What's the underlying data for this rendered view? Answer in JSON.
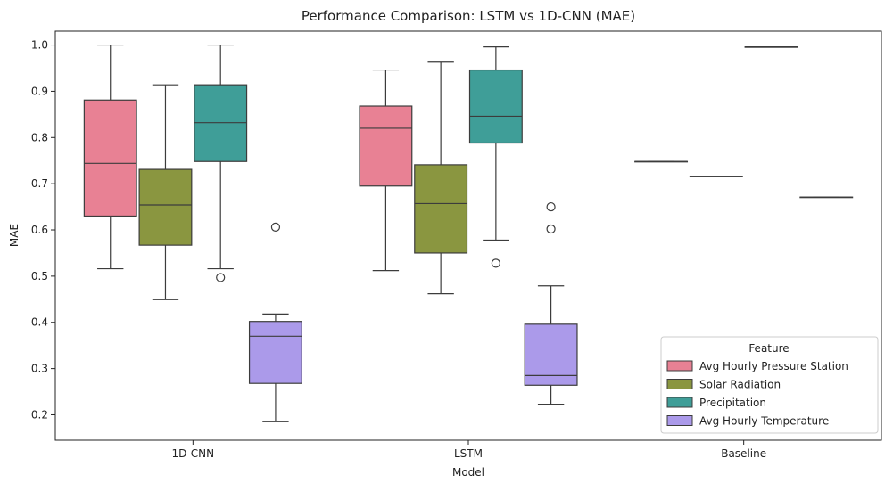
{
  "chart_data": {
    "type": "box",
    "title": "Performance Comparison: LSTM vs 1D-CNN (MAE)",
    "xlabel": "Model",
    "ylabel": "MAE",
    "ylim": [
      0.145,
      1.03
    ],
    "yticks": [
      0.2,
      0.3,
      0.4,
      0.5,
      0.6,
      0.7,
      0.8,
      0.9,
      1.0
    ],
    "ytick_labels": [
      "0.2",
      "0.3",
      "0.4",
      "0.5",
      "0.6",
      "0.7",
      "0.8",
      "0.9",
      "1.0"
    ],
    "categories": [
      "1D-CNN",
      "LSTM",
      "Baseline"
    ],
    "legend": {
      "title": "Feature",
      "position": "lower right"
    },
    "grid": false,
    "series": [
      {
        "name": "Avg Hourly Pressure Station",
        "color": "#e88194",
        "boxes": [
          {
            "whislo": 0.516,
            "q1": 0.63,
            "med": 0.744,
            "q3": 0.881,
            "whishi": 1.0,
            "fliers": []
          },
          {
            "whislo": 0.512,
            "q1": 0.695,
            "med": 0.82,
            "q3": 0.868,
            "whishi": 0.946,
            "fliers": []
          },
          {
            "whislo": 0.748,
            "q1": 0.748,
            "med": 0.748,
            "q3": 0.748,
            "whishi": 0.748,
            "fliers": []
          }
        ]
      },
      {
        "name": "Solar Radiation",
        "color": "#8a9640",
        "boxes": [
          {
            "whislo": 0.449,
            "q1": 0.567,
            "med": 0.654,
            "q3": 0.731,
            "whishi": 0.914,
            "fliers": []
          },
          {
            "whislo": 0.462,
            "q1": 0.55,
            "med": 0.657,
            "q3": 0.741,
            "whishi": 0.963,
            "fliers": []
          },
          {
            "whislo": 0.716,
            "q1": 0.716,
            "med": 0.716,
            "q3": 0.716,
            "whishi": 0.716,
            "fliers": []
          }
        ]
      },
      {
        "name": "Precipitation",
        "color": "#3f9e98",
        "boxes": [
          {
            "whislo": 0.516,
            "q1": 0.748,
            "med": 0.832,
            "q3": 0.914,
            "whishi": 1.0,
            "fliers": [
              0.497
            ]
          },
          {
            "whislo": 0.578,
            "q1": 0.788,
            "med": 0.846,
            "q3": 0.946,
            "whishi": 0.996,
            "fliers": [
              0.528
            ]
          },
          {
            "whislo": 0.996,
            "q1": 0.996,
            "med": 0.996,
            "q3": 0.996,
            "whishi": 0.996,
            "fliers": []
          }
        ]
      },
      {
        "name": "Avg Hourly Temperature",
        "color": "#ab9aea",
        "boxes": [
          {
            "whislo": 0.185,
            "q1": 0.268,
            "med": 0.37,
            "q3": 0.402,
            "whishi": 0.418,
            "fliers": [
              0.606
            ]
          },
          {
            "whislo": 0.223,
            "q1": 0.264,
            "med": 0.285,
            "q3": 0.396,
            "whishi": 0.479,
            "fliers": [
              0.602,
              0.65
            ]
          },
          {
            "whislo": 0.671,
            "q1": 0.671,
            "med": 0.671,
            "q3": 0.671,
            "whishi": 0.671,
            "fliers": []
          }
        ]
      }
    ]
  }
}
